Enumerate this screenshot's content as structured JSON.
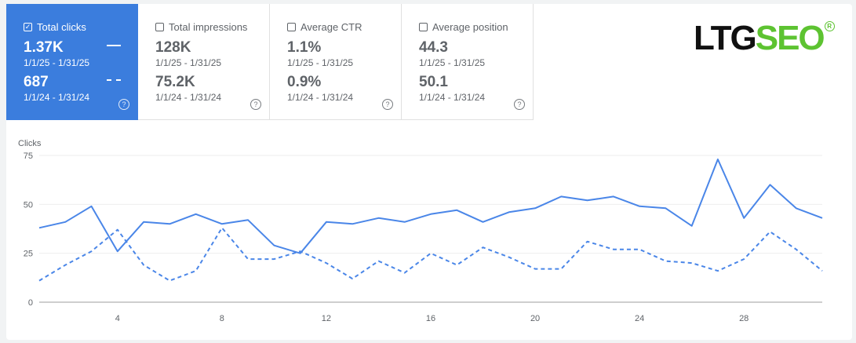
{
  "metrics": [
    {
      "label": "Total clicks",
      "checked": true,
      "value_current": "1.37K",
      "range_current": "1/1/25 - 1/31/25",
      "value_previous": "687",
      "range_previous": "1/1/24 - 1/31/24",
      "help": "?"
    },
    {
      "label": "Total impressions",
      "checked": false,
      "value_current": "128K",
      "range_current": "1/1/25 - 1/31/25",
      "value_previous": "75.2K",
      "range_previous": "1/1/24 - 1/31/24",
      "help": "?"
    },
    {
      "label": "Average CTR",
      "checked": false,
      "value_current": "1.1%",
      "range_current": "1/1/25 - 1/31/25",
      "value_previous": "0.9%",
      "range_previous": "1/1/24 - 1/31/24",
      "help": "?"
    },
    {
      "label": "Average position",
      "checked": false,
      "value_current": "44.3",
      "range_current": "1/1/25 - 1/31/25",
      "value_previous": "50.1",
      "range_previous": "1/1/24 - 1/31/24",
      "help": "?"
    }
  ],
  "checkmark": "✓",
  "logo": {
    "part1": "LTG",
    "part2": "SEO",
    "reg": "R"
  },
  "colors": {
    "accent": "#3b7ddd",
    "series": "#4a86e8",
    "logo_green": "#5dc331"
  },
  "chart_data": {
    "type": "line",
    "title": "",
    "xlabel": "",
    "ylabel": "Clicks",
    "ylim": [
      0,
      75
    ],
    "y_ticks": [
      0,
      25,
      50,
      75
    ],
    "x_ticks": [
      4,
      8,
      12,
      16,
      20,
      24,
      28
    ],
    "xlim": [
      1,
      31
    ],
    "grid": true,
    "x": [
      1,
      2,
      3,
      4,
      5,
      6,
      7,
      8,
      9,
      10,
      11,
      12,
      13,
      14,
      15,
      16,
      17,
      18,
      19,
      20,
      21,
      22,
      23,
      24,
      25,
      26,
      27,
      28,
      29,
      30,
      31
    ],
    "series": [
      {
        "style": "solid",
        "values": [
          38,
          41,
          49,
          26,
          41,
          40,
          45,
          40,
          42,
          29,
          25,
          41,
          40,
          43,
          41,
          45,
          47,
          41,
          46,
          48,
          54,
          52,
          54,
          49,
          48,
          39,
          73,
          43,
          60,
          48,
          43
        ]
      },
      {
        "style": "dashed",
        "values": [
          11,
          19,
          26,
          37,
          19,
          11,
          16,
          38,
          22,
          22,
          26,
          20,
          12,
          21,
          15,
          25,
          19,
          28,
          23,
          17,
          17,
          31,
          27,
          27,
          21,
          20,
          16,
          22,
          36,
          27,
          16
        ]
      }
    ]
  }
}
